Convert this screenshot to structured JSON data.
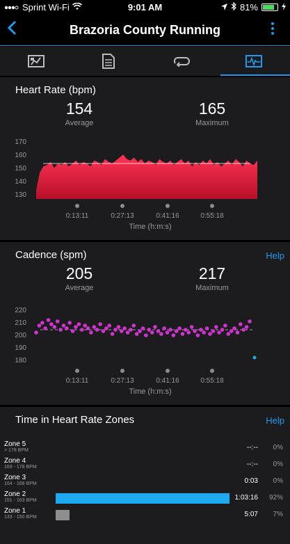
{
  "status": {
    "carrier": "Sprint Wi-Fi",
    "time": "9:01 AM",
    "battery": "81%",
    "battery_level": 0.81
  },
  "nav": {
    "title": "Brazoria County Running"
  },
  "tabs": [
    {
      "icon": "map-icon",
      "active": false
    },
    {
      "icon": "document-icon",
      "active": false
    },
    {
      "icon": "laps-icon",
      "active": false
    },
    {
      "icon": "chart-icon",
      "active": true
    }
  ],
  "heart_rate": {
    "title": "Heart Rate (bpm)",
    "average": "154",
    "average_label": "Average",
    "maximum": "165",
    "maximum_label": "Maximum",
    "y_ticks": [
      "170",
      "160",
      "150",
      "140",
      "130"
    ],
    "x_ticks": [
      "0:13:11",
      "0:27:13",
      "0:41:16",
      "0:55:18"
    ],
    "x_label": "Time (h:m:s)",
    "color": "#e0233f"
  },
  "cadence": {
    "title": "Cadence (spm)",
    "help": "Help",
    "average": "205",
    "average_label": "Average",
    "maximum": "217",
    "maximum_label": "Maximum",
    "y_ticks": [
      "220",
      "210",
      "200",
      "190",
      "180"
    ],
    "x_ticks": [
      "0:13:11",
      "0:27:13",
      "0:41:16",
      "0:55:18"
    ],
    "x_label": "Time (h:m:s)",
    "color": "#d232d2",
    "outlier_color": "#1eaaf0"
  },
  "zones": {
    "title": "Time in Heart Rate Zones",
    "help": "Help",
    "rows": [
      {
        "name": "Zone 5",
        "range": "> 178 BPM",
        "time": "--:--",
        "pct": "0%",
        "fraction": 0,
        "color": "#1eaaf0"
      },
      {
        "name": "Zone 4",
        "range": "169 - 178 BPM",
        "time": "--:--",
        "pct": "0%",
        "fraction": 0,
        "color": "#1eaaf0"
      },
      {
        "name": "Zone 3",
        "range": "164 - 168 BPM",
        "time": "0:03",
        "pct": "0%",
        "fraction": 0,
        "color": "#1eaaf0"
      },
      {
        "name": "Zone 2",
        "range": "151 - 163 BPM",
        "time": "1:03:16",
        "pct": "92%",
        "fraction": 0.92,
        "color": "#1eaaf0"
      },
      {
        "name": "Zone 1",
        "range": "133 - 150 BPM",
        "time": "5:07",
        "pct": "7%",
        "fraction": 0.07,
        "color": "#8e8e8e"
      }
    ]
  },
  "chart_data": [
    {
      "type": "area",
      "title": "Heart Rate (bpm)",
      "xlabel": "Time (h:m:s)",
      "ylabel": "",
      "ylim": [
        130,
        170
      ],
      "x_ticks": [
        "0:13:11",
        "0:27:13",
        "0:41:16",
        "0:55:18"
      ],
      "reference_line": 154,
      "series": [
        {
          "values": [
            136,
            148,
            152,
            153,
            155,
            151,
            154,
            153,
            155,
            152,
            154,
            156,
            153,
            155,
            154,
            152,
            156,
            155,
            153,
            157,
            155,
            154,
            156,
            158,
            160,
            157,
            156,
            158,
            155,
            157,
            154,
            156,
            155,
            153,
            157,
            155,
            154,
            156,
            153,
            155,
            157,
            154,
            156,
            152,
            155,
            153,
            156,
            154,
            157,
            153,
            155,
            152,
            154,
            156,
            153,
            157,
            155,
            152,
            156,
            154,
            153,
            156
          ]
        }
      ]
    },
    {
      "type": "scatter",
      "title": "Cadence (spm)",
      "xlabel": "Time (h:m:s)",
      "ylabel": "",
      "ylim": [
        180,
        220
      ],
      "x_ticks": [
        "0:13:11",
        "0:27:13",
        "0:41:16",
        "0:55:18"
      ],
      "reference_line": 205,
      "series": [
        {
          "values": [
            203,
            208,
            210,
            206,
            212,
            209,
            207,
            211,
            205,
            208,
            206,
            210,
            204,
            207,
            209,
            205,
            208,
            206,
            203,
            207,
            205,
            209,
            204,
            206,
            208,
            202,
            205,
            207,
            204,
            206,
            203,
            205,
            208,
            202,
            204,
            206,
            201,
            205,
            203,
            207,
            204,
            202,
            206,
            203,
            205,
            201,
            204,
            206,
            202,
            205,
            203,
            207,
            204,
            201,
            205,
            203,
            206,
            202,
            204,
            207,
            203,
            205,
            208,
            202,
            204,
            206,
            203,
            209,
            205,
            207,
            211
          ]
        },
        {
          "name": "",
          "values": [
            185
          ]
        }
      ]
    }
  ]
}
